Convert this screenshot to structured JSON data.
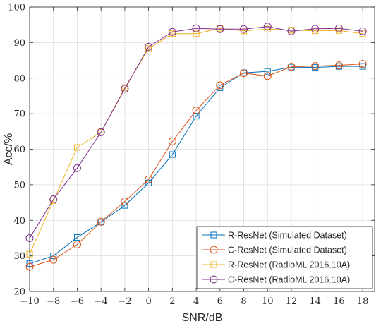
{
  "chart_data": {
    "type": "line",
    "title": "",
    "xlabel": "SNR/dB",
    "ylabel": "Acc/%",
    "xlim": [
      -10,
      19
    ],
    "ylim": [
      20,
      100
    ],
    "xticks": [
      "−10",
      "−8",
      "−6",
      "−4",
      "−2",
      "0",
      "2",
      "4",
      "6",
      "8",
      "10",
      "12",
      "14",
      "16",
      "18"
    ],
    "xtick_values": [
      -10,
      -8,
      -6,
      -4,
      -2,
      0,
      2,
      4,
      6,
      8,
      10,
      12,
      14,
      16,
      18
    ],
    "yticks": [
      "20",
      "30",
      "40",
      "50",
      "60",
      "70",
      "80",
      "90",
      "100"
    ],
    "ytick_values": [
      20,
      30,
      40,
      50,
      60,
      70,
      80,
      90,
      100
    ],
    "grid": true,
    "legend_position": "bottom-right",
    "x": [
      -10,
      -8,
      -6,
      -4,
      -2,
      0,
      2,
      4,
      6,
      8,
      10,
      12,
      14,
      16,
      18
    ],
    "series": [
      {
        "name": "R-ResNet (Simulated Dataset)",
        "color": "#0072BD",
        "marker": "square",
        "values": [
          27.8,
          30.0,
          35.2,
          39.5,
          44.2,
          50.5,
          58.5,
          69.3,
          77.3,
          81.5,
          81.9,
          83.1,
          83.0,
          83.3,
          83.3
        ]
      },
      {
        "name": "C-ResNet (Simulated Dataset)",
        "color": "#D95319",
        "marker": "circle",
        "values": [
          26.9,
          28.9,
          33.2,
          39.6,
          45.3,
          51.5,
          62.2,
          70.9,
          78.0,
          81.4,
          80.6,
          83.2,
          83.4,
          83.6,
          84.0
        ]
      },
      {
        "name": "R-ResNet (RadioML 2016.10A)",
        "color": "#EDB120",
        "marker": "square",
        "values": [
          30.5,
          45.5,
          60.5,
          64.8,
          77.3,
          88.3,
          92.5,
          92.5,
          94.0,
          93.3,
          93.8,
          93.5,
          93.3,
          93.4,
          92.5
        ]
      },
      {
        "name": "C-ResNet (RadioML 2016.10A)",
        "color": "#7E2F8E",
        "marker": "circle",
        "values": [
          35.0,
          45.9,
          54.7,
          64.8,
          77.0,
          88.8,
          93.0,
          94.0,
          93.8,
          93.8,
          94.5,
          93.2,
          93.9,
          94.0,
          93.2
        ]
      }
    ]
  }
}
